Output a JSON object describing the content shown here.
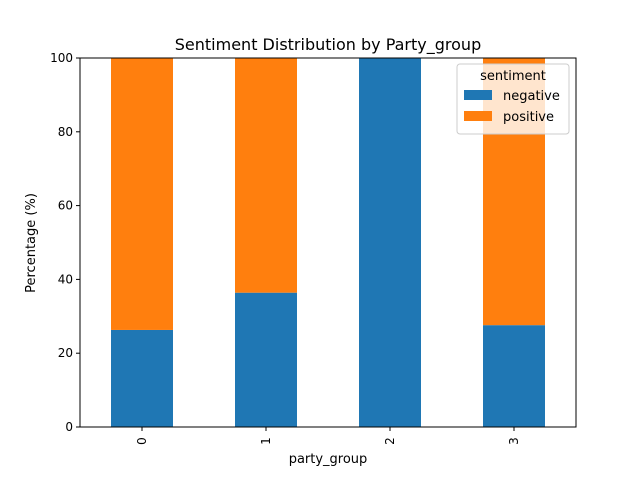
{
  "chart_data": {
    "type": "bar",
    "stacked": true,
    "title": "Sentiment Distribution by Party_group",
    "xlabel": "party_group",
    "ylabel": "Percentage (%)",
    "categories": [
      "0",
      "1",
      "2",
      "3"
    ],
    "ylim": [
      0,
      100
    ],
    "yticks": [
      "0",
      "20",
      "40",
      "60",
      "80",
      "100"
    ],
    "grid": false,
    "legend": {
      "title": "sentiment",
      "placement": "top-right"
    },
    "series": [
      {
        "name": "negative",
        "color": "#1f77b4",
        "values": [
          26.3,
          36.4,
          100,
          27.6
        ]
      },
      {
        "name": "positive",
        "color": "#ff7f0e",
        "values": [
          73.7,
          63.6,
          0,
          72.4
        ]
      }
    ]
  }
}
